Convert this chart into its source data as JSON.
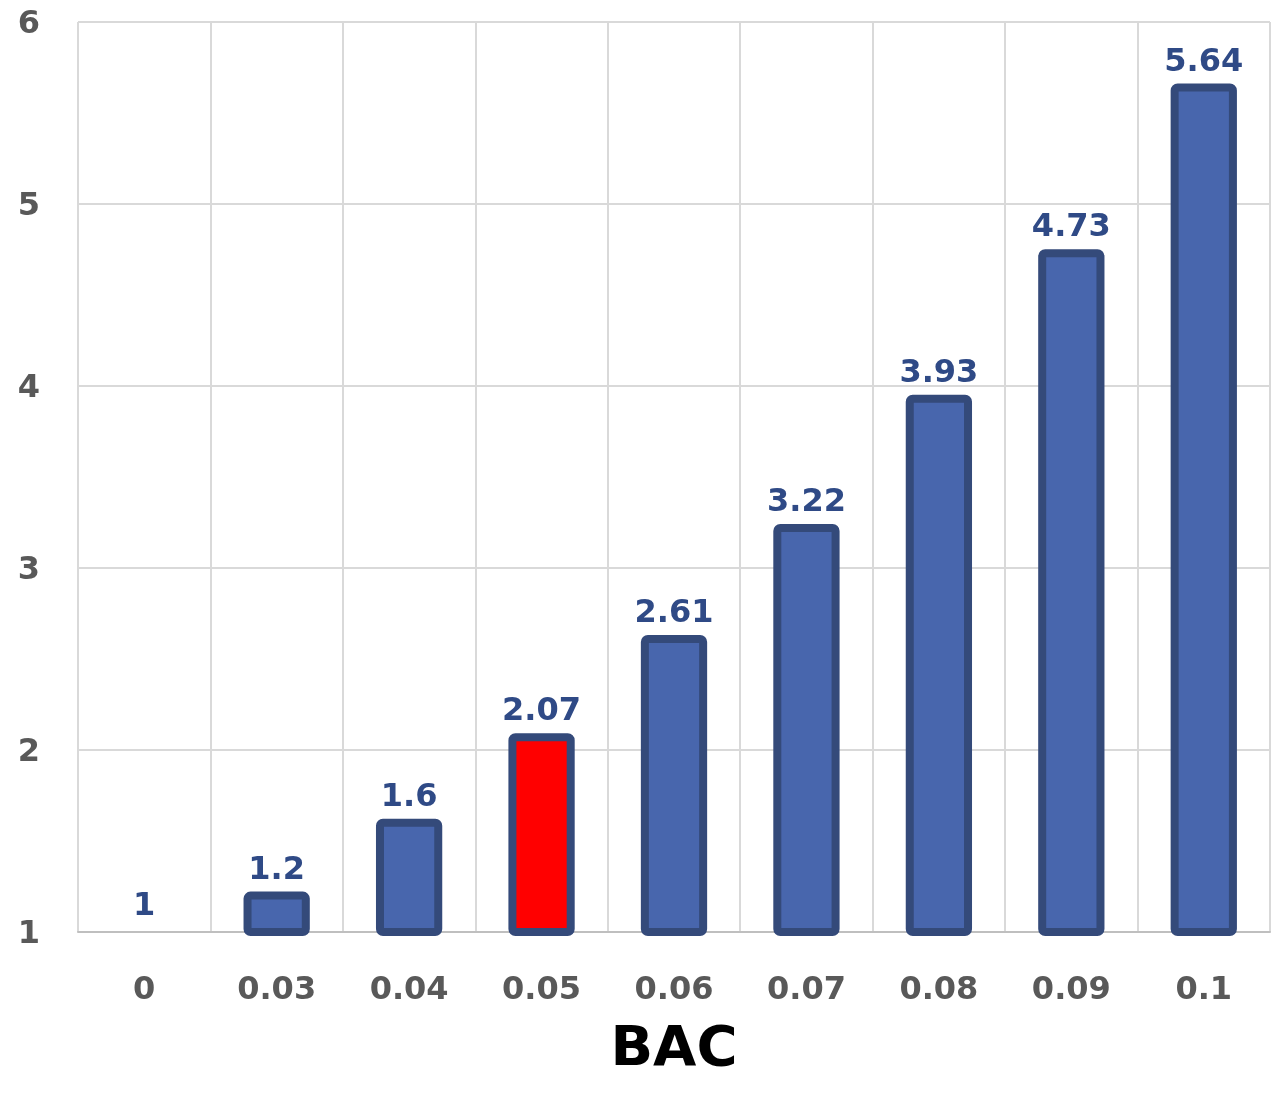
{
  "chart_data": {
    "type": "bar",
    "xlabel": "BAC",
    "categories": [
      "0",
      "0.03",
      "0.04",
      "0.05",
      "0.06",
      "0.07",
      "0.08",
      "0.09",
      "0.1"
    ],
    "values": [
      1,
      1.2,
      1.6,
      2.07,
      2.61,
      3.22,
      3.93,
      4.73,
      5.64
    ],
    "colors": [
      "#4866ad",
      "#4866ad",
      "#4866ad",
      "#ff0000",
      "#4866ad",
      "#4866ad",
      "#4866ad",
      "#4866ad",
      "#4866ad"
    ],
    "ylim": [
      1,
      6
    ],
    "yticks": [
      1,
      2,
      3,
      4,
      5,
      6
    ],
    "grid": true,
    "data_labels": true
  }
}
